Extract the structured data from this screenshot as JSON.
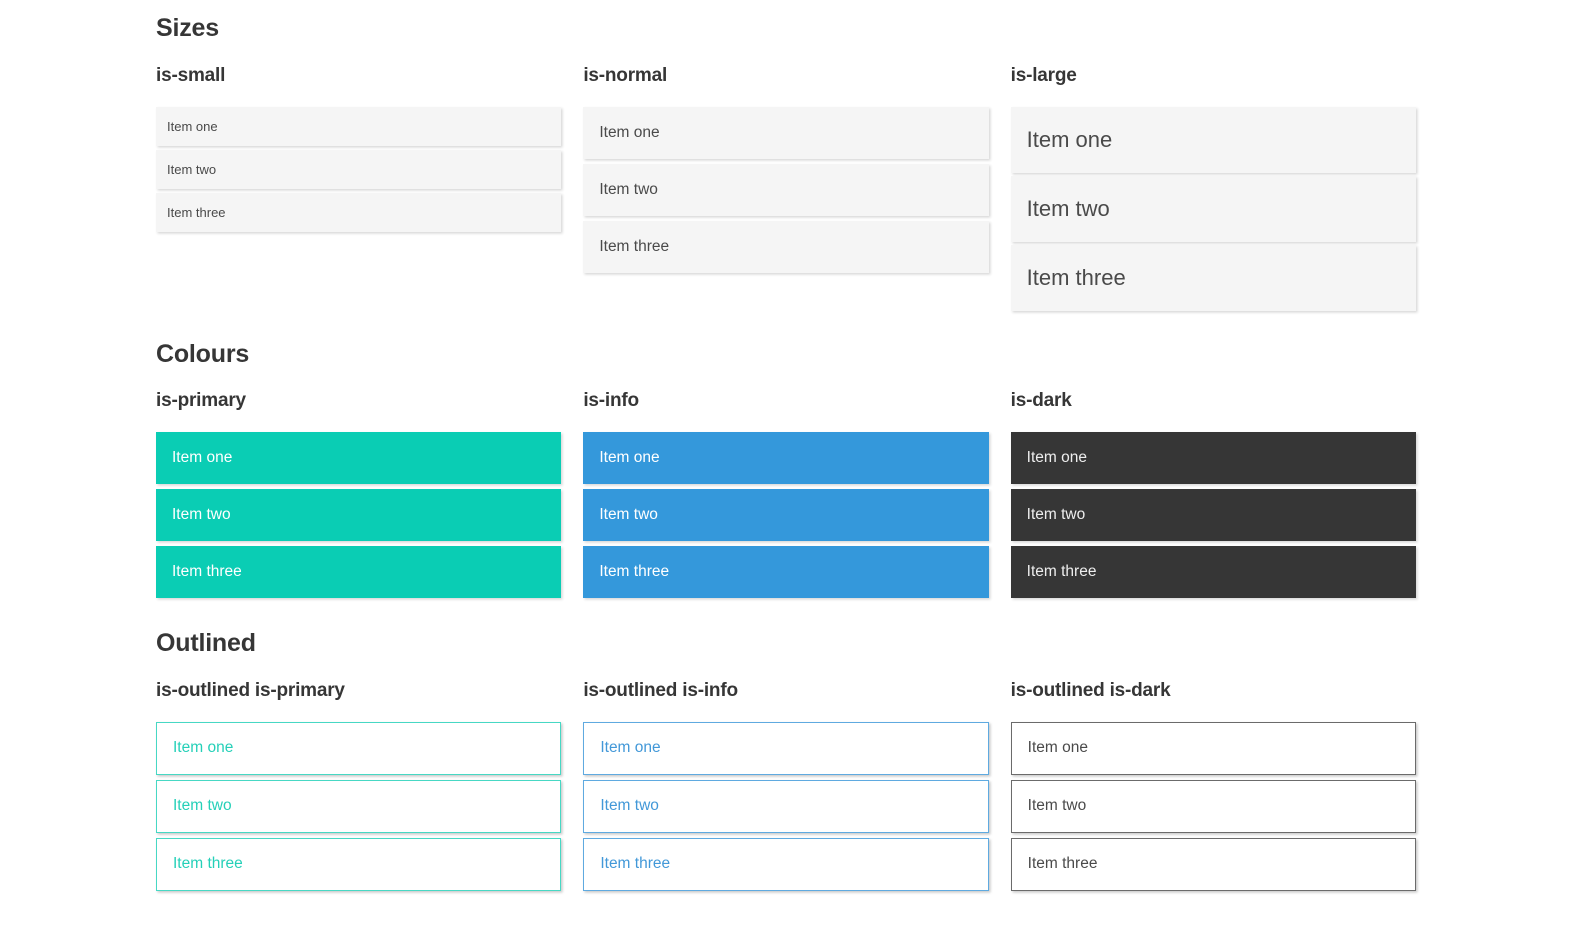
{
  "page_background": "#ffffff",
  "heading_color": "#363636",
  "sections": [
    {
      "title": "Sizes",
      "groups": [
        {
          "label": "is-small",
          "size": "small",
          "colors": {
            "bg": "#f5f5f5",
            "fg": "#4a4a4a"
          },
          "items": [
            "Item one",
            "Item two",
            "Item three"
          ]
        },
        {
          "label": "is-normal",
          "size": "normal",
          "colors": {
            "bg": "#f5f5f5",
            "fg": "#4a4a4a"
          },
          "items": [
            "Item one",
            "Item two",
            "Item three"
          ]
        },
        {
          "label": "is-large",
          "size": "large",
          "colors": {
            "bg": "#f5f5f5",
            "fg": "#4a4a4a"
          },
          "items": [
            "Item one",
            "Item two",
            "Item three"
          ]
        }
      ]
    },
    {
      "title": "Colours",
      "groups": [
        {
          "label": "is-primary",
          "size": "normal",
          "colors": {
            "bg": "#0acdb4",
            "fg": "#ffffff"
          },
          "items": [
            "Item one",
            "Item two",
            "Item three"
          ]
        },
        {
          "label": "is-info",
          "size": "normal",
          "colors": {
            "bg": "#3498db",
            "fg": "#ffffff"
          },
          "items": [
            "Item one",
            "Item two",
            "Item three"
          ]
        },
        {
          "label": "is-dark",
          "size": "normal",
          "colors": {
            "bg": "#363636",
            "fg": "#eeeeee"
          },
          "items": [
            "Item one",
            "Item two",
            "Item three"
          ]
        }
      ]
    },
    {
      "title": "Outlined",
      "groups": [
        {
          "label": "is-outlined is-primary",
          "size": "normal",
          "colors": {
            "bg": "#ffffff",
            "fg": "#25d0b8",
            "border": "#47d8c4"
          },
          "items": [
            "Item one",
            "Item two",
            "Item three"
          ]
        },
        {
          "label": "is-outlined is-info",
          "size": "normal",
          "colors": {
            "bg": "#ffffff",
            "fg": "#4298d8",
            "border": "#5faae0"
          },
          "items": [
            "Item one",
            "Item two",
            "Item three"
          ]
        },
        {
          "label": "is-outlined is-dark",
          "size": "normal",
          "colors": {
            "bg": "#ffffff",
            "fg": "#4a4a4a",
            "border": "#6b6b6b"
          },
          "items": [
            "Item one",
            "Item two",
            "Item three"
          ]
        }
      ]
    }
  ]
}
